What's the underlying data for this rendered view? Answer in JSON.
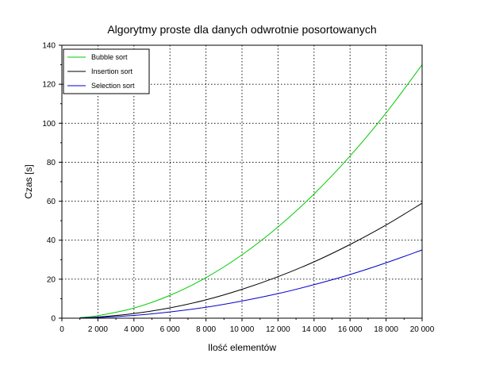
{
  "chart_data": {
    "type": "line",
    "title": "Algorytmy proste dla danych odwrotnie posortowanych",
    "xlabel": "Ilość elementów",
    "ylabel": "Czas [s]",
    "xlim": [
      0,
      20000
    ],
    "ylim": [
      0,
      140
    ],
    "grid": true,
    "legend_position": "top-left",
    "x_ticks": [
      0,
      2000,
      4000,
      6000,
      8000,
      10000,
      12000,
      14000,
      16000,
      18000,
      20000
    ],
    "x_tick_labels": [
      "0",
      "2 000",
      "4 000",
      "6 000",
      "8 000",
      "10 000",
      "12 000",
      "14 000",
      "16 000",
      "18 000",
      "20 000"
    ],
    "y_ticks": [
      0,
      20,
      40,
      60,
      80,
      100,
      120,
      140
    ],
    "y_tick_labels": [
      "0",
      "20",
      "40",
      "60",
      "80",
      "100",
      "120",
      "140"
    ],
    "x": [
      1000,
      2000,
      4000,
      6000,
      8000,
      10000,
      12000,
      14000,
      16000,
      18000,
      20000
    ],
    "series": [
      {
        "name": "Bubble sort",
        "color": "#00cc00",
        "values": [
          0.3,
          1.3,
          5.2,
          11.7,
          20.8,
          32.5,
          46.8,
          63.7,
          83.2,
          105.3,
          130
        ]
      },
      {
        "name": "Insertion sort",
        "color": "#000000",
        "values": [
          0.15,
          0.6,
          2.4,
          5.3,
          9.4,
          14.8,
          21.3,
          28.9,
          37.8,
          47.8,
          59
        ]
      },
      {
        "name": "Selection sort",
        "color": "#0000cc",
        "values": [
          0.09,
          0.35,
          1.4,
          3.2,
          5.6,
          8.8,
          12.6,
          17.2,
          22.4,
          28.4,
          35
        ]
      }
    ]
  }
}
